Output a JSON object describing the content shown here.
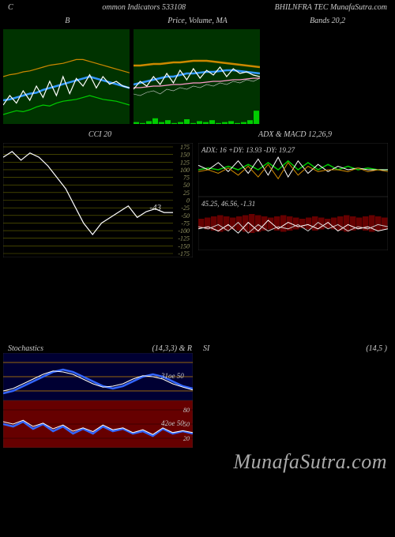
{
  "header": {
    "left": "C",
    "center": "ommon Indicators 533108",
    "right": "BHILNFRA TEC MunafaSutra.com"
  },
  "watermark": "MunafaSutra.com",
  "panels": {
    "top": [
      {
        "title": "B",
        "bg": "#003300",
        "series": [
          {
            "color": "#00cc00",
            "width": 1.2,
            "y": [
              10,
              12,
              14,
              13,
              15,
              18,
              20,
              19,
              22,
              24,
              25,
              26,
              28,
              30,
              28,
              26,
              25,
              24,
              22,
              20
            ]
          },
          {
            "color": "#3399ff",
            "width": 2.5,
            "y": [
              25,
              26,
              28,
              30,
              32,
              33,
              36,
              38,
              40,
              42,
              44,
              46,
              48,
              50,
              48,
              46,
              44,
              42,
              40,
              38
            ]
          },
          {
            "color": "#ffffff",
            "width": 1.2,
            "y": [
              20,
              30,
              22,
              35,
              25,
              40,
              28,
              45,
              30,
              50,
              32,
              48,
              40,
              52,
              38,
              50,
              42,
              45,
              40,
              38
            ]
          },
          {
            "color": "#cc8800",
            "width": 1.2,
            "y": [
              50,
              52,
              53,
              55,
              56,
              58,
              60,
              62,
              63,
              64,
              66,
              68,
              68,
              66,
              64,
              62,
              60,
              58,
              56,
              54
            ]
          }
        ]
      },
      {
        "title": "Price, Volume, MA",
        "bg": "#003300",
        "series": [
          {
            "color": "#cccccc",
            "width": 0.6,
            "y": [
              18,
              16,
              20,
              22,
              18,
              24,
              22,
              26,
              24,
              28,
              26,
              30,
              28,
              32,
              30,
              34,
              32,
              36,
              34,
              38
            ]
          },
          {
            "color": "#ff99cc",
            "width": 1.2,
            "y": [
              26,
              26,
              27,
              28,
              28,
              29,
              30,
              30,
              31,
              32,
              32,
              33,
              34,
              34,
              35,
              36,
              36,
              37,
              38,
              38
            ]
          },
          {
            "color": "#3399ff",
            "width": 2.5,
            "y": [
              30,
              32,
              34,
              36,
              38,
              40,
              40,
              42,
              44,
              44,
              45,
              46,
              46,
              47,
              48,
              48,
              47,
              46,
              45,
              44
            ]
          },
          {
            "color": "#ffffff",
            "width": 1.2,
            "y": [
              24,
              34,
              28,
              40,
              30,
              44,
              32,
              48,
              36,
              50,
              38,
              48,
              42,
              52,
              40,
              50,
              44,
              46,
              42,
              40
            ]
          },
          {
            "color": "#cc8800",
            "width": 2.5,
            "y": [
              54,
              54,
              55,
              56,
              56,
              57,
              58,
              58,
              59,
              60,
              60,
              60,
              59,
              58,
              57,
              56,
              55,
              54,
              53,
              52
            ]
          }
        ],
        "volume": {
          "color": "#00cc00",
          "vals": [
            2,
            1,
            3,
            6,
            2,
            4,
            1,
            2,
            5,
            1,
            3,
            2,
            4,
            1,
            2,
            3,
            1,
            2,
            4,
            14
          ]
        }
      },
      {
        "title": "Bands 20,2"
      }
    ],
    "mid_left": {
      "title": "CCI 20",
      "bg": "#000000",
      "grid_color": "#666600",
      "ylabels": [
        175,
        150,
        125,
        100,
        75,
        50,
        25,
        0,
        -25,
        -50,
        -75,
        -100,
        -125,
        -150,
        -175
      ],
      "label_fontsize": 8,
      "label_color": "#999966",
      "annot": {
        "text": "-43",
        "color": "#cccccc",
        "y_idx": 8
      },
      "series": {
        "color": "#ffffff",
        "width": 1.2,
        "y": [
          150,
          170,
          140,
          165,
          150,
          120,
          80,
          40,
          -20,
          -80,
          -120,
          -80,
          -60,
          -40,
          -20,
          -60,
          -40,
          -30,
          -43,
          -43
        ]
      }
    },
    "mid_right_top": {
      "title": "ADX  & MACD 12,26,9",
      "label": "ADX: 16  +DY: 13.93 -DY: 19.27",
      "label_color": "#cccccc",
      "bg": "#000000",
      "series": [
        {
          "color": "#00cc00",
          "width": 1.5,
          "y": [
            30,
            32,
            30,
            34,
            30,
            36,
            30,
            38,
            30,
            40,
            30,
            38,
            30,
            36,
            30,
            34,
            30,
            32,
            30,
            30
          ]
        },
        {
          "color": "#ffffff",
          "width": 1.0,
          "y": [
            35,
            30,
            38,
            28,
            40,
            26,
            42,
            24,
            44,
            22,
            40,
            26,
            36,
            28,
            34,
            30,
            32,
            30,
            30,
            30
          ]
        },
        {
          "color": "#cc8800",
          "width": 1.0,
          "y": [
            28,
            30,
            26,
            32,
            24,
            34,
            22,
            36,
            20,
            38,
            24,
            34,
            28,
            30,
            30,
            28,
            32,
            28,
            30,
            28
          ]
        }
      ]
    },
    "mid_right_bot": {
      "label": "45.25, 46.56, -1.31",
      "bg": "#000000",
      "bars": {
        "color": "#660000",
        "vals": [
          8,
          10,
          12,
          14,
          12,
          10,
          12,
          14,
          16,
          14,
          12,
          10,
          12,
          14,
          12,
          10,
          8,
          10,
          12,
          10,
          8,
          10,
          12,
          14,
          12,
          10,
          12,
          14,
          12,
          10
        ]
      },
      "line1": {
        "color": "#ffffff",
        "width": 1.0,
        "y": [
          20,
          22,
          18,
          24,
          16,
          26,
          18,
          28,
          20,
          26,
          22,
          24,
          20,
          26,
          18,
          24,
          20,
          22,
          18,
          20
        ]
      },
      "line2": {
        "color": "#cccccc",
        "width": 1.0,
        "y": [
          22,
          20,
          24,
          18,
          26,
          16,
          24,
          18,
          22,
          20,
          24,
          18,
          26,
          20,
          24,
          18,
          22,
          20,
          24,
          22
        ]
      }
    },
    "stoch": {
      "title_left": "Stochastics",
      "title_mid": "(14,3,3) & R",
      "title_s": "SI",
      "title_right": "(14,5               )",
      "top": {
        "bg": "#000033",
        "hlines": [
          20,
          50,
          80
        ],
        "hcolor": "#cc8800",
        "annot": "31oe 50",
        "series": [
          {
            "color": "#3366ff",
            "width": 2.5,
            "y": [
              15,
              20,
              30,
              40,
              50,
              60,
              65,
              60,
              50,
              40,
              30,
              25,
              30,
              40,
              50,
              55,
              50,
              40,
              30,
              25
            ]
          },
          {
            "color": "#ffffff",
            "width": 1.0,
            "y": [
              20,
              25,
              35,
              45,
              55,
              62,
              60,
              55,
              45,
              35,
              28,
              30,
              35,
              45,
              52,
              50,
              45,
              35,
              28,
              22
            ]
          }
        ]
      },
      "bot": {
        "bg": "#660000",
        "hlines": [
          20,
          50,
          80
        ],
        "hcolor": "#330000",
        "annot": "42oe 50",
        "ylabels": [
          80,
          50,
          20
        ],
        "series": [
          {
            "color": "#3366ff",
            "width": 2.5,
            "y": [
              50,
              45,
              55,
              40,
              50,
              35,
              45,
              30,
              40,
              30,
              45,
              35,
              40,
              30,
              35,
              25,
              40,
              30,
              35,
              30
            ]
          },
          {
            "color": "#ffffff",
            "width": 1.0,
            "y": [
              55,
              50,
              58,
              45,
              52,
              40,
              48,
              35,
              42,
              34,
              48,
              38,
              42,
              32,
              38,
              28,
              42,
              32,
              36,
              32
            ]
          }
        ]
      }
    }
  }
}
